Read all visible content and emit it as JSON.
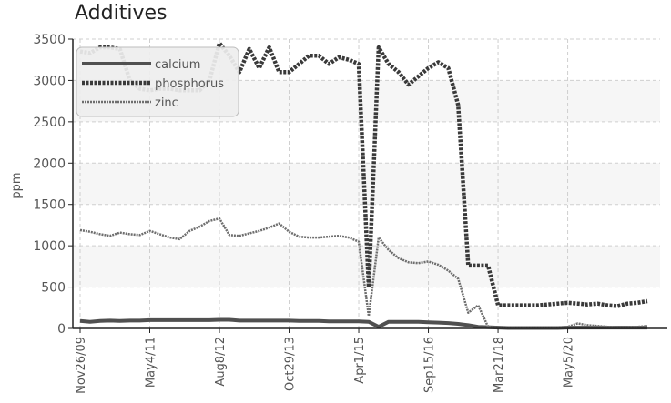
{
  "chart_data": {
    "type": "line",
    "title": "Additives",
    "ylabel": "ppm",
    "xlabel": "",
    "ylim": [
      0,
      3500
    ],
    "yticks": [
      0,
      500,
      1000,
      1500,
      2000,
      2500,
      3000,
      3500
    ],
    "x_tick_labels": [
      "Nov26/09",
      "May4/11",
      "Aug8/12",
      "Oct29/13",
      "Apr1/15",
      "Sep15/16",
      "Mar21/18",
      "May5/20"
    ],
    "x_tick_index": [
      0,
      7,
      14,
      21,
      28,
      35,
      42,
      49
    ],
    "grid": true,
    "legend_position": "top-left",
    "series": [
      {
        "name": "calcium",
        "color": "#505050",
        "values": [
          90,
          80,
          90,
          95,
          90,
          95,
          95,
          100,
          100,
          100,
          100,
          100,
          100,
          100,
          105,
          105,
          95,
          95,
          95,
          95,
          95,
          95,
          90,
          90,
          90,
          85,
          85,
          85,
          85,
          80,
          20,
          80,
          80,
          80,
          80,
          75,
          70,
          65,
          55,
          40,
          20,
          15,
          10,
          5,
          5,
          5,
          5,
          5,
          5,
          10,
          10,
          10,
          10,
          10,
          10,
          10,
          10,
          10
        ]
      },
      {
        "name": "phosphorus",
        "color": "#3a3a3a",
        "values": [
          3350,
          3330,
          3400,
          3400,
          3380,
          3000,
          2900,
          2880,
          2900,
          2900,
          2880,
          2880,
          2880,
          3000,
          3450,
          3300,
          3100,
          3380,
          3150,
          3400,
          3100,
          3100,
          3200,
          3300,
          3300,
          3200,
          3280,
          3250,
          3200,
          500,
          3400,
          3200,
          3100,
          2950,
          3050,
          3150,
          3220,
          3150,
          2700,
          760,
          760,
          760,
          280,
          280,
          280,
          280,
          280,
          290,
          300,
          310,
          300,
          290,
          300,
          280,
          270,
          300,
          310,
          330
        ]
      },
      {
        "name": "zinc",
        "color": "#6e6e6e",
        "values": [
          1190,
          1170,
          1140,
          1120,
          1160,
          1140,
          1130,
          1180,
          1140,
          1100,
          1080,
          1180,
          1230,
          1300,
          1330,
          1130,
          1120,
          1150,
          1180,
          1220,
          1270,
          1170,
          1110,
          1100,
          1100,
          1110,
          1120,
          1100,
          1050,
          150,
          1100,
          950,
          850,
          800,
          790,
          810,
          770,
          700,
          600,
          190,
          280,
          20,
          10,
          10,
          10,
          10,
          10,
          10,
          10,
          20,
          60,
          40,
          30,
          20,
          10,
          10,
          20,
          30
        ]
      }
    ]
  }
}
